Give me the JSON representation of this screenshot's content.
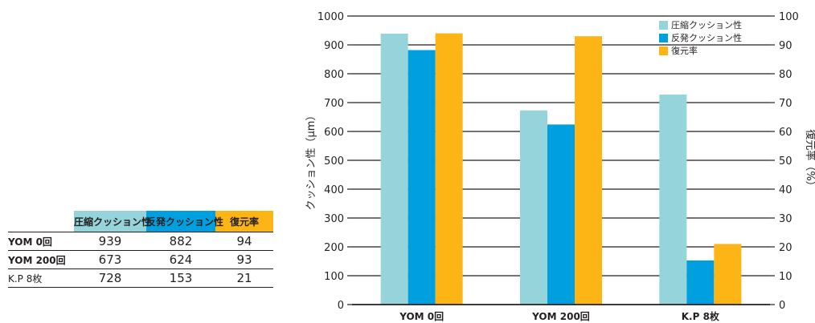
{
  "table": {
    "headers": [
      "",
      "圧縮クッション性",
      "反発クッション性",
      "復元率"
    ],
    "rows": [
      {
        "label": "YOM 0回",
        "values": [
          "939",
          "882",
          "94"
        ],
        "bold": true
      },
      {
        "label": "YOM 200回",
        "values": [
          "673",
          "624",
          "93"
        ],
        "bold": true
      },
      {
        "label": "K.P 8枚",
        "values": [
          "728",
          "153",
          "21"
        ],
        "bold": false
      }
    ]
  },
  "chart_data": {
    "type": "bar",
    "categories": [
      "YOM 0回",
      "YOM 200回",
      "K.P 8枚"
    ],
    "series": [
      {
        "name": "圧縮クッション性",
        "values": [
          939,
          673,
          728
        ],
        "axis": "left",
        "color": "#96d4db"
      },
      {
        "name": "反発クッション性",
        "values": [
          882,
          624,
          153
        ],
        "axis": "left",
        "color": "#00a0e0"
      },
      {
        "name": "復元率",
        "values": [
          94,
          93,
          21
        ],
        "axis": "right",
        "color": "#fcb514"
      }
    ],
    "ylabel": "クッション性（μm）",
    "y2label": "復元率（%）",
    "ylim": [
      0,
      1000
    ],
    "y2lim": [
      0,
      100
    ],
    "yticks": [
      0,
      100,
      200,
      300,
      400,
      500,
      600,
      700,
      800,
      900,
      1000
    ],
    "y2ticks": [
      0,
      10,
      20,
      30,
      40,
      50,
      60,
      70,
      80,
      90,
      100
    ],
    "grid": true,
    "legend": "top-right"
  }
}
